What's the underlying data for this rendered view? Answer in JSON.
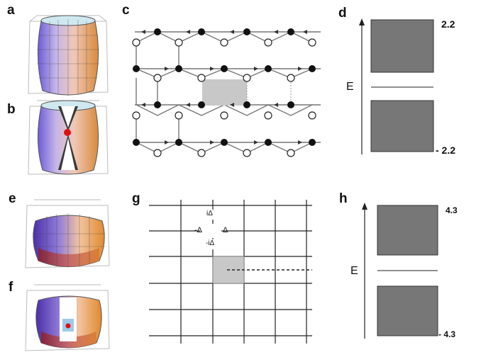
{
  "panels": {
    "a": "a",
    "b": "b",
    "c": "c",
    "d": "d",
    "e": "e",
    "f": "f",
    "g": "g",
    "h": "h"
  },
  "spectrum_top": {
    "axis_label": "E",
    "upper_value": "2.2",
    "lower_value": "- 2.2"
  },
  "spectrum_bottom": {
    "axis_label": "E",
    "upper_value": "4.3",
    "lower_value": "- 4.3"
  },
  "lattice_g": {
    "up_label": "iΔ",
    "left_label": "-Δ",
    "right_label": "Δ",
    "down_label": "-iΔ"
  },
  "colors": {
    "band_fill": "#777777",
    "cell_fill": "#c8c8c8",
    "grid": "#222222"
  }
}
